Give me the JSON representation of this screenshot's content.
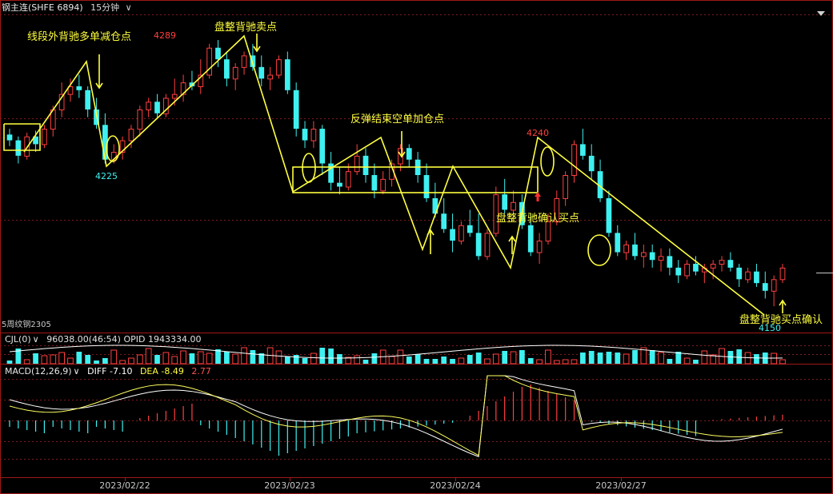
{
  "header": {
    "symbol": "钢主连(SHFE 6894)",
    "period": "15分钟",
    "period_chevron": "∨"
  },
  "colors": {
    "up": "#ff4040",
    "down": "#3ff0f0",
    "annotation": "#ffff40",
    "grid": "#7a1e1e",
    "border": "#a01818",
    "white_line": "#ffffff"
  },
  "bottom_left_label": "5周纹钢2305",
  "volume_panel": {
    "indicator": "CJL(0)",
    "chevron": "∨",
    "values": "96038.00(46:54)  OPID 1943334.00"
  },
  "macd_panel": {
    "indicator": "MACD(12,26,9)",
    "chevron": "∨",
    "diff": "DIFF -7.10",
    "dea": "DEA -8.49",
    "macd": "2.77"
  },
  "chart_data": {
    "type": "candlestick",
    "title": "钢主连(SHFE 6894) 15分钟",
    "x_dates": [
      "2023/02/22",
      "2023/02/23",
      "2023/02/24",
      "2023/02/27"
    ],
    "price_labels": [
      {
        "text": "4289",
        "color": "up"
      },
      {
        "text": "4225",
        "color": "down"
      },
      {
        "text": "4240",
        "color": "up"
      },
      {
        "text": "4150",
        "color": "down"
      }
    ],
    "annotations": [
      "线段外背驰多单减仓点",
      "盘整背驰卖点",
      "反弹结束空单加仓点",
      "盘整背驰确认买点",
      "盘整背驰买点确认"
    ],
    "candles": [
      [
        4241,
        4244,
        4235,
        4238
      ],
      [
        4238,
        4240,
        4226,
        4230
      ],
      [
        4230,
        4242,
        4228,
        4240
      ],
      [
        4240,
        4243,
        4232,
        4236
      ],
      [
        4236,
        4246,
        4234,
        4244
      ],
      [
        4244,
        4256,
        4240,
        4254
      ],
      [
        4254,
        4268,
        4250,
        4262
      ],
      [
        4262,
        4270,
        4258,
        4266
      ],
      [
        4266,
        4272,
        4260,
        4264
      ],
      [
        4264,
        4266,
        4250,
        4254
      ],
      [
        4254,
        4260,
        4244,
        4246
      ],
      [
        4246,
        4252,
        4226,
        4228
      ],
      [
        4228,
        4236,
        4226,
        4232
      ],
      [
        4232,
        4240,
        4228,
        4238
      ],
      [
        4238,
        4246,
        4234,
        4244
      ],
      [
        4244,
        4256,
        4240,
        4254
      ],
      [
        4254,
        4260,
        4250,
        4258
      ],
      [
        4258,
        4262,
        4250,
        4252
      ],
      [
        4252,
        4262,
        4250,
        4260
      ],
      [
        4260,
        4270,
        4256,
        4262
      ],
      [
        4262,
        4272,
        4258,
        4268
      ],
      [
        4268,
        4274,
        4264,
        4266
      ],
      [
        4266,
        4280,
        4262,
        4272
      ],
      [
        4272,
        4288,
        4270,
        4286
      ],
      [
        4286,
        4290,
        4276,
        4280
      ],
      [
        4280,
        4284,
        4266,
        4270
      ],
      [
        4270,
        4278,
        4264,
        4276
      ],
      [
        4276,
        4284,
        4272,
        4282
      ],
      [
        4282,
        4288,
        4274,
        4276
      ],
      [
        4276,
        4282,
        4266,
        4270
      ],
      [
        4270,
        4276,
        4264,
        4272
      ],
      [
        4272,
        4282,
        4270,
        4280
      ],
      [
        4280,
        4284,
        4262,
        4264
      ],
      [
        4264,
        4268,
        4240,
        4244
      ],
      [
        4244,
        4248,
        4234,
        4238
      ],
      [
        4238,
        4248,
        4234,
        4244
      ],
      [
        4244,
        4246,
        4220,
        4226
      ],
      [
        4226,
        4232,
        4212,
        4216
      ],
      [
        4216,
        4224,
        4210,
        4214
      ],
      [
        4214,
        4226,
        4212,
        4222
      ],
      [
        4222,
        4236,
        4220,
        4230
      ],
      [
        4230,
        4234,
        4216,
        4220
      ],
      [
        4220,
        4226,
        4208,
        4212
      ],
      [
        4212,
        4222,
        4210,
        4218
      ],
      [
        4218,
        4228,
        4214,
        4226
      ],
      [
        4226,
        4236,
        4222,
        4234
      ],
      [
        4234,
        4236,
        4224,
        4228
      ],
      [
        4228,
        4232,
        4216,
        4220
      ],
      [
        4220,
        4226,
        4206,
        4208
      ],
      [
        4208,
        4216,
        4198,
        4200
      ],
      [
        4200,
        4208,
        4190,
        4192
      ],
      [
        4192,
        4200,
        4180,
        4186
      ],
      [
        4186,
        4196,
        4184,
        4194
      ],
      [
        4194,
        4202,
        4188,
        4190
      ],
      [
        4190,
        4200,
        4176,
        4178
      ],
      [
        4178,
        4192,
        4176,
        4190
      ],
      [
        4190,
        4214,
        4188,
        4210
      ],
      [
        4210,
        4218,
        4200,
        4202
      ],
      [
        4202,
        4212,
        4196,
        4206
      ],
      [
        4206,
        4210,
        4192,
        4194
      ],
      [
        4194,
        4200,
        4178,
        4180
      ],
      [
        4180,
        4190,
        4174,
        4186
      ],
      [
        4186,
        4200,
        4184,
        4196
      ],
      [
        4196,
        4212,
        4194,
        4208
      ],
      [
        4208,
        4222,
        4204,
        4220
      ],
      [
        4220,
        4238,
        4216,
        4236
      ],
      [
        4236,
        4244,
        4228,
        4230
      ],
      [
        4230,
        4236,
        4218,
        4222
      ],
      [
        4222,
        4228,
        4206,
        4208
      ],
      [
        4208,
        4212,
        4188,
        4190
      ],
      [
        4190,
        4194,
        4178,
        4180
      ],
      [
        4180,
        4186,
        4176,
        4184
      ],
      [
        4184,
        4190,
        4176,
        4178
      ],
      [
        4178,
        4184,
        4172,
        4180
      ],
      [
        4180,
        4184,
        4172,
        4176
      ],
      [
        4176,
        4182,
        4170,
        4178
      ],
      [
        4178,
        4182,
        4168,
        4172
      ],
      [
        4172,
        4176,
        4164,
        4168
      ],
      [
        4168,
        4176,
        4166,
        4174
      ],
      [
        4174,
        4178,
        4168,
        4170
      ],
      [
        4170,
        4174,
        4164,
        4172
      ],
      [
        4172,
        4176,
        4166,
        4174
      ],
      [
        4174,
        4178,
        4170,
        4176
      ],
      [
        4176,
        4180,
        4170,
        4172
      ],
      [
        4172,
        4174,
        4162,
        4166
      ],
      [
        4166,
        4172,
        4164,
        4170
      ],
      [
        4170,
        4174,
        4162,
        4164
      ],
      [
        4164,
        4170,
        4156,
        4160
      ],
      [
        4160,
        4168,
        4152,
        4166
      ],
      [
        4166,
        4174,
        4164,
        4172
      ]
    ],
    "x_labels": [
      "2023/02/22",
      "2023/02/23",
      "2023/02/24",
      "2023/02/27"
    ]
  }
}
